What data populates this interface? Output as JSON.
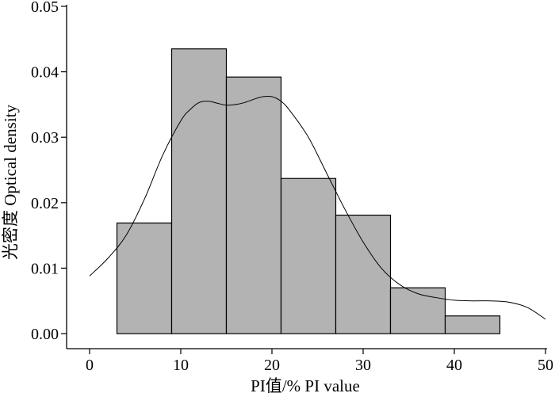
{
  "chart_data": {
    "type": "histogram",
    "xlabel": "PI值/% PI value",
    "ylabel": "光密度 Optical density",
    "xlim": [
      0,
      50
    ],
    "ylim": [
      0,
      0.05
    ],
    "x_ticks": [
      "0",
      "10",
      "20",
      "30",
      "40",
      "50"
    ],
    "y_ticks": [
      "0.00",
      "0.01",
      "0.02",
      "0.03",
      "0.04",
      "0.05"
    ],
    "grid": false,
    "bars": [
      {
        "start": 3,
        "end": 9,
        "value": 0.0169
      },
      {
        "start": 9,
        "end": 15,
        "value": 0.0435
      },
      {
        "start": 15,
        "end": 21,
        "value": 0.0392
      },
      {
        "start": 21,
        "end": 27,
        "value": 0.0237
      },
      {
        "start": 27,
        "end": 33,
        "value": 0.0181
      },
      {
        "start": 33,
        "end": 39,
        "value": 0.007
      },
      {
        "start": 39,
        "end": 45,
        "value": 0.0027
      }
    ],
    "density_curve": {
      "x": [
        0,
        2,
        4,
        6,
        8,
        10,
        11,
        12,
        13,
        14,
        15,
        16,
        17,
        18,
        19,
        20,
        21,
        22,
        24,
        26,
        28,
        30,
        32,
        34,
        36,
        38,
        40,
        42,
        44,
        46,
        48,
        50
      ],
      "y": [
        0.0088,
        0.0115,
        0.015,
        0.0205,
        0.0272,
        0.0325,
        0.0342,
        0.0353,
        0.0355,
        0.0352,
        0.0349,
        0.035,
        0.0353,
        0.0358,
        0.0362,
        0.0362,
        0.0355,
        0.034,
        0.03,
        0.0245,
        0.019,
        0.014,
        0.01,
        0.0075,
        0.0061,
        0.0055,
        0.0051,
        0.005,
        0.005,
        0.0048,
        0.004,
        0.0022
      ]
    },
    "colors": {
      "bar_fill": "#b3b3b3",
      "bar_stroke": "#000000",
      "curve": "#000000",
      "axis": "#000000"
    }
  }
}
